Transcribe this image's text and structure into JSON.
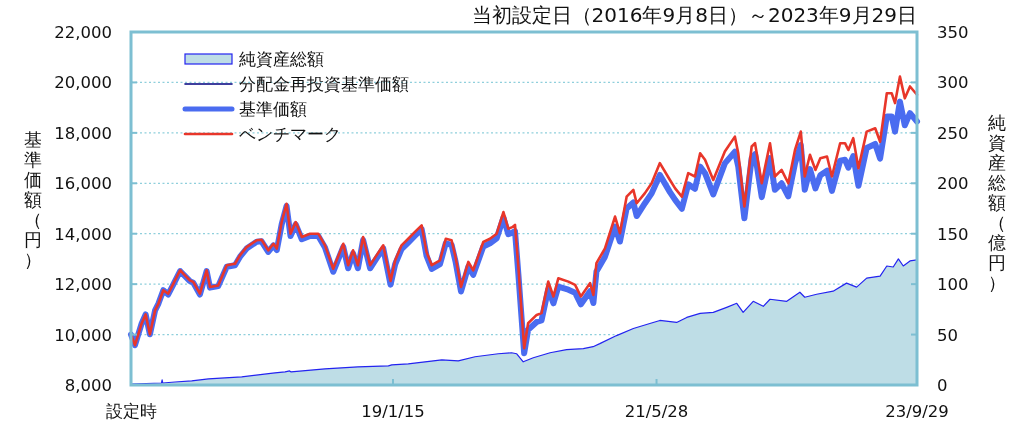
{
  "chart_data": {
    "type": "line",
    "title": "当初設定日（2016年9月8日）～2023年9月29日",
    "ylabel": "基準価額（円）",
    "y2label": "純資産総額（億円）",
    "xlim": [
      "2016-09-08",
      "2023-09-29"
    ],
    "xticks": [
      {
        "value": "2016-09-08",
        "label": "設定時"
      },
      {
        "value": "2019-01-15",
        "label": "19/1/15"
      },
      {
        "value": "2021-05-28",
        "label": "21/5/28"
      },
      {
        "value": "2023-09-29",
        "label": "23/9/29"
      }
    ],
    "ylim": [
      8000,
      22000
    ],
    "yticks": [
      {
        "value": 8000,
        "label": "8,000"
      },
      {
        "value": 10000,
        "label": "10,000"
      },
      {
        "value": 12000,
        "label": "12,000"
      },
      {
        "value": 14000,
        "label": "14,000"
      },
      {
        "value": 16000,
        "label": "16,000"
      },
      {
        "value": 18000,
        "label": "18,000"
      },
      {
        "value": 20000,
        "label": "20,000"
      },
      {
        "value": 22000,
        "label": "22,000"
      }
    ],
    "y2lim": [
      0,
      350
    ],
    "y2ticks": [
      0,
      50,
      100,
      150,
      200,
      250,
      300,
      350
    ],
    "grid": "y",
    "legend": "top left",
    "series": [
      {
        "name": "純資産総額",
        "type": "area",
        "axis": "y2",
        "color": "#bedde6",
        "x": [
          "2016-09-08",
          "2016-12-17",
          "2016-12-19",
          "2016-12-21",
          "2017-01-30",
          "2017-03-26",
          "2017-05-20",
          "2017-07-13",
          "2017-09-06",
          "2017-10-30",
          "2017-12-24",
          "2018-01-26",
          "2018-02-10",
          "2018-02-15",
          "2018-06-06",
          "2018-09-22",
          "2018-12-31",
          "2019-01-11",
          "2019-03-06",
          "2019-04-30",
          "2019-06-24",
          "2019-08-17",
          "2019-10-11",
          "2019-12-26",
          "2020-02-08",
          "2020-02-24",
          "2020-03-17",
          "2020-04-19",
          "2020-06-13",
          "2020-08-06",
          "2020-09-30",
          "2020-11-01",
          "2020-11-23",
          "2021-01-17",
          "2021-03-13",
          "2021-05-06",
          "2021-06-08",
          "2021-08-02",
          "2021-09-04",
          "2021-10-18",
          "2021-11-30",
          "2022-01-13",
          "2022-02-15",
          "2022-03-08",
          "2022-04-10",
          "2022-05-13",
          "2022-06-04",
          "2022-07-29",
          "2022-09-10",
          "2022-09-26",
          "2022-11-04",
          "2022-12-28",
          "2023-02-10",
          "2023-03-15",
          "2023-04-17",
          "2023-05-31",
          "2023-06-22",
          "2023-07-13",
          "2023-07-30",
          "2023-08-15",
          "2023-09-06",
          "2023-09-29"
        ],
        "values": [
          1,
          2,
          5,
          2,
          3,
          4,
          6,
          7,
          8,
          10,
          12,
          13,
          14,
          13,
          16,
          18,
          19,
          20,
          21,
          23,
          25,
          24,
          28,
          31,
          32,
          31,
          23,
          27,
          32,
          35,
          36,
          38,
          41,
          49,
          56,
          61,
          64,
          62,
          67,
          71,
          72,
          77,
          81,
          72,
          83,
          78,
          85,
          83,
          92,
          87,
          90,
          93,
          101,
          97,
          106,
          108,
          118,
          117,
          125,
          118,
          123,
          124
        ]
      },
      {
        "name": "分配金再投資基準価額",
        "color": "#00007f"
      },
      {
        "name": "基準価額",
        "color": "#4a6cf0",
        "x": [
          "2016-09-08",
          "2016-09-21",
          "2016-10-13",
          "2016-10-26",
          "2016-11-09",
          "2016-11-26",
          "2016-12-07",
          "2016-12-23",
          "2017-01-08",
          "2017-01-25",
          "2017-02-16",
          "2017-03-04",
          "2017-03-20",
          "2017-03-31",
          "2017-04-22",
          "2017-05-14",
          "2017-05-25",
          "2017-06-21",
          "2017-07-19",
          "2017-08-15",
          "2017-08-31",
          "2017-09-22",
          "2017-10-25",
          "2017-11-10",
          "2017-12-02",
          "2017-12-19",
          "2017-12-30",
          "2018-01-15",
          "2018-01-31",
          "2018-02-13",
          "2018-03-02",
          "2018-03-22",
          "2018-04-18",
          "2018-05-15",
          "2018-06-06",
          "2018-07-03",
          "2018-08-05",
          "2018-08-21",
          "2018-09-06",
          "2018-09-22",
          "2018-10-09",
          "2018-11-01",
          "2018-11-22",
          "2018-12-14",
          "2019-01-07",
          "2019-01-22",
          "2019-02-12",
          "2019-03-06",
          "2019-03-28",
          "2019-04-19",
          "2019-05-05",
          "2019-05-22",
          "2019-06-18",
          "2019-07-07",
          "2019-07-26",
          "2019-08-08",
          "2019-08-26",
          "2019-09-19",
          "2019-10-05",
          "2019-11-07",
          "2019-11-29",
          "2019-12-21",
          "2020-01-12",
          "2020-01-28",
          "2020-02-10",
          "2020-02-19",
          "2020-03-01",
          "2020-03-20",
          "2020-04-02",
          "2020-04-30",
          "2020-05-16",
          "2020-06-07",
          "2020-06-24",
          "2020-07-10",
          "2020-08-12",
          "2020-09-03",
          "2020-09-22",
          "2020-10-22",
          "2020-11-02",
          "2020-11-12",
          "2020-12-10",
          "2021-01-12",
          "2021-01-28",
          "2021-02-19",
          "2021-03-13",
          "2021-03-24",
          "2021-04-20",
          "2021-05-12",
          "2021-06-08",
          "2021-07-11",
          "2021-07-28",
          "2021-08-19",
          "2021-09-09",
          "2021-10-01",
          "2021-10-18",
          "2021-11-03",
          "2021-11-30",
          "2022-01-07",
          "2022-02-09",
          "2022-02-20",
          "2022-03-12",
          "2022-04-05",
          "2022-04-16",
          "2022-05-08",
          "2022-06-04",
          "2022-06-20",
          "2022-07-12",
          "2022-08-03",
          "2022-08-25",
          "2022-09-13",
          "2022-09-26",
          "2022-10-13",
          "2022-10-31",
          "2022-11-16",
          "2022-12-08",
          "2022-12-24",
          "2023-01-20",
          "2023-02-05",
          "2023-02-16",
          "2023-03-04",
          "2023-03-21",
          "2023-04-17",
          "2023-05-15",
          "2023-05-31",
          "2023-06-22",
          "2023-07-08",
          "2023-07-19",
          "2023-08-04",
          "2023-08-20",
          "2023-09-06",
          "2023-09-29"
        ],
        "values": [
          10000,
          9580,
          10440,
          10800,
          10010,
          10960,
          11230,
          11760,
          11590,
          11990,
          12520,
          12320,
          12120,
          12060,
          11590,
          12520,
          11860,
          11920,
          12690,
          12750,
          13080,
          13410,
          13680,
          13700,
          13280,
          13540,
          13350,
          14370,
          15100,
          13910,
          14370,
          13780,
          13910,
          13910,
          13450,
          12490,
          13480,
          12630,
          13220,
          12630,
          13750,
          12630,
          13020,
          13420,
          11980,
          12790,
          13390,
          13650,
          13920,
          14180,
          13120,
          12600,
          12790,
          13620,
          13560,
          12900,
          11710,
          12700,
          12370,
          13490,
          13620,
          13820,
          14640,
          13980,
          14040,
          14100,
          12400,
          9260,
          10190,
          10500,
          10560,
          11800,
          11240,
          11900,
          11780,
          11660,
          11200,
          11720,
          11250,
          12500,
          13090,
          14280,
          13690,
          15000,
          15240,
          14700,
          15210,
          15600,
          16330,
          15650,
          15340,
          14990,
          15960,
          15780,
          16660,
          16400,
          15560,
          16790,
          17250,
          16660,
          14610,
          17000,
          17150,
          15450,
          17000,
          15740,
          16000,
          15480,
          16790,
          17520,
          15740,
          16560,
          15800,
          16320,
          16500,
          15700,
          16900,
          16930,
          16620,
          17080,
          15900,
          17400,
          17560,
          16980,
          18650,
          18650,
          18050,
          19240,
          18300,
          18780,
          18450
        ]
      },
      {
        "name": "ベンチマーク",
        "color": "#e8362a",
        "x": [
          "2016-09-08",
          "2016-09-21",
          "2016-10-13",
          "2016-10-26",
          "2016-11-09",
          "2016-11-26",
          "2016-12-07",
          "2016-12-23",
          "2017-01-08",
          "2017-01-25",
          "2017-02-16",
          "2017-03-04",
          "2017-03-20",
          "2017-03-31",
          "2017-04-22",
          "2017-05-14",
          "2017-05-25",
          "2017-06-21",
          "2017-07-19",
          "2017-08-15",
          "2017-08-31",
          "2017-09-22",
          "2017-10-25",
          "2017-11-10",
          "2017-12-02",
          "2017-12-19",
          "2017-12-30",
          "2018-01-15",
          "2018-01-31",
          "2018-02-13",
          "2018-03-02",
          "2018-03-22",
          "2018-04-18",
          "2018-05-15",
          "2018-06-06",
          "2018-07-03",
          "2018-08-05",
          "2018-08-21",
          "2018-09-06",
          "2018-09-22",
          "2018-10-09",
          "2018-11-01",
          "2018-11-22",
          "2018-12-14",
          "2019-01-07",
          "2019-01-22",
          "2019-02-12",
          "2019-03-06",
          "2019-03-28",
          "2019-04-19",
          "2019-05-05",
          "2019-05-22",
          "2019-06-18",
          "2019-07-07",
          "2019-07-26",
          "2019-08-08",
          "2019-08-26",
          "2019-09-19",
          "2019-10-05",
          "2019-11-07",
          "2019-11-29",
          "2019-12-21",
          "2020-01-12",
          "2020-01-28",
          "2020-02-10",
          "2020-02-19",
          "2020-03-01",
          "2020-03-20",
          "2020-04-02",
          "2020-04-30",
          "2020-05-16",
          "2020-06-07",
          "2020-06-24",
          "2020-07-10",
          "2020-08-12",
          "2020-09-03",
          "2020-09-22",
          "2020-10-22",
          "2020-11-02",
          "2020-11-12",
          "2020-12-10",
          "2021-01-12",
          "2021-01-28",
          "2021-02-19",
          "2021-03-13",
          "2021-03-24",
          "2021-04-20",
          "2021-05-12",
          "2021-06-08",
          "2021-07-11",
          "2021-07-28",
          "2021-08-19",
          "2021-09-09",
          "2021-10-01",
          "2021-10-18",
          "2021-11-03",
          "2021-11-30",
          "2022-01-07",
          "2022-02-09",
          "2022-02-20",
          "2022-03-12",
          "2022-04-05",
          "2022-04-16",
          "2022-05-08",
          "2022-06-04",
          "2022-06-20",
          "2022-07-12",
          "2022-08-03",
          "2022-08-25",
          "2022-09-13",
          "2022-09-26",
          "2022-10-13",
          "2022-10-31",
          "2022-11-16",
          "2022-12-08",
          "2022-12-24",
          "2023-01-20",
          "2023-02-05",
          "2023-02-16",
          "2023-03-04",
          "2023-03-21",
          "2023-04-17",
          "2023-05-15",
          "2023-05-31",
          "2023-06-22",
          "2023-07-08",
          "2023-07-19",
          "2023-08-04",
          "2023-08-20",
          "2023-09-06",
          "2023-09-29"
        ],
        "values": [
          10000,
          9580,
          10440,
          10800,
          10010,
          10960,
          11230,
          11760,
          11620,
          12020,
          12550,
          12350,
          12150,
          12090,
          11620,
          12550,
          11890,
          11950,
          12750,
          12810,
          13140,
          13470,
          13740,
          13760,
          13340,
          13600,
          13410,
          14460,
          15190,
          14000,
          14460,
          13870,
          14000,
          14000,
          13540,
          12610,
          13600,
          12750,
          13340,
          12750,
          13870,
          12750,
          13140,
          13540,
          12130,
          12940,
          13540,
          13800,
          14070,
          14330,
          13270,
          12750,
          12940,
          13800,
          13740,
          13080,
          11890,
          12880,
          12550,
          13670,
          13800,
          14000,
          14860,
          14200,
          14260,
          14350,
          12700,
          9460,
          10450,
          10780,
          10850,
          12100,
          11510,
          12230,
          12100,
          11970,
          11510,
          12040,
          11570,
          12830,
          13420,
          14680,
          14020,
          15470,
          15740,
          15210,
          15610,
          16000,
          16800,
          16130,
          15800,
          15470,
          16400,
          16270,
          17190,
          16930,
          16130,
          17260,
          17850,
          17190,
          15080,
          17460,
          17590,
          16000,
          17590,
          16270,
          16530,
          16000,
          17320,
          18050,
          16270,
          17130,
          16530,
          16990,
          17060,
          16270,
          17590,
          17590,
          17320,
          17790,
          16600,
          18050,
          18180,
          17650,
          19570,
          19570,
          19180,
          20230,
          19370,
          19840,
          19510
        ]
      }
    ]
  }
}
